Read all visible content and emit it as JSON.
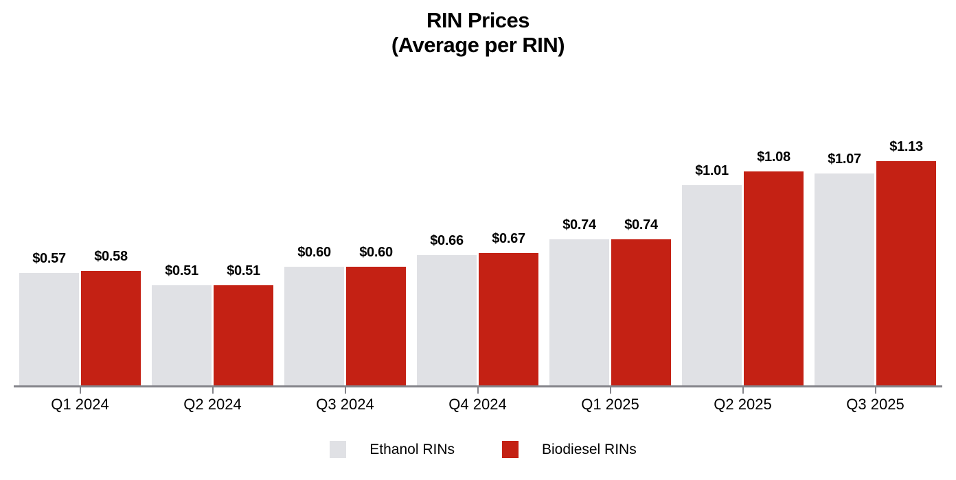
{
  "title": {
    "line1": "RIN Prices",
    "line2": "(Average per RIN)"
  },
  "chart_data": {
    "type": "bar",
    "title": "RIN Prices (Average per RIN)",
    "categories": [
      "Q1 2024",
      "Q2 2024",
      "Q3 2024",
      "Q4 2024",
      "Q1 2025",
      "Q2 2025",
      "Q3 2025"
    ],
    "series": [
      {
        "name": "Ethanol RINs",
        "color": "#e0e1e5",
        "values": [
          0.57,
          0.51,
          0.6,
          0.66,
          0.74,
          1.01,
          1.07
        ],
        "labels": [
          "$0.57",
          "$0.51",
          "$0.60",
          "$0.66",
          "$0.74",
          "$1.01",
          "$1.07"
        ]
      },
      {
        "name": "Biodiesel RINs",
        "color": "#c42114",
        "values": [
          0.58,
          0.51,
          0.6,
          0.67,
          0.74,
          1.08,
          1.13
        ],
        "labels": [
          "$0.58",
          "$0.51",
          "$0.60",
          "$0.67",
          "$0.74",
          "$1.08",
          "$1.13"
        ]
      }
    ],
    "value_prefix": "$",
    "data_labels": true,
    "legend_position": "bottom",
    "xlabel": "",
    "ylabel": "",
    "y_axis_visible": false,
    "gridlines": false,
    "ylim": [
      0,
      1.25
    ],
    "axis_color": "#84848a",
    "label_color": "#000000",
    "background_color": "#ffffff"
  }
}
